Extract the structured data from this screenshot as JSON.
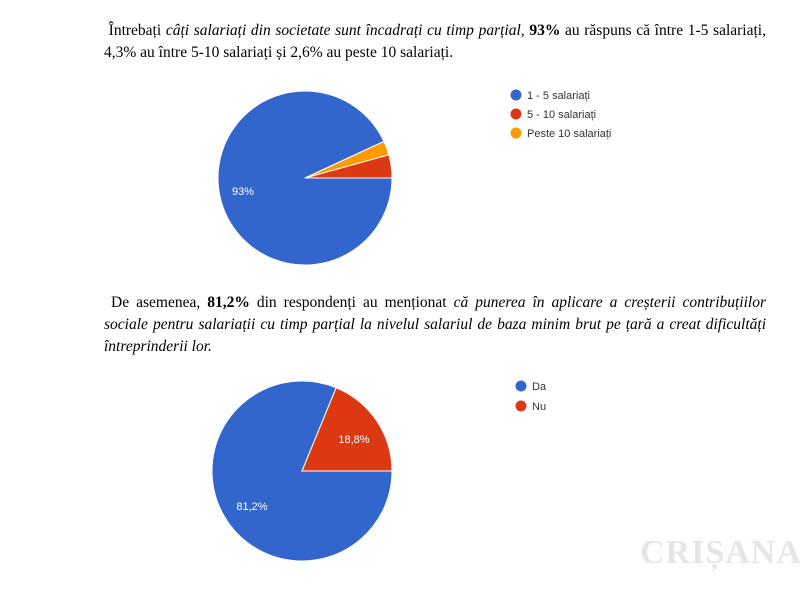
{
  "paragraph1": {
    "t1": "Întrebați ",
    "t2_italic": "câți salariați din societate sunt încadrați cu timp parțial",
    "t3": ", ",
    "t4_bold": "93%",
    "t5": " au răspuns că între 1-5 salariați, 4,3% au între 5-10 salariați și 2,6% au peste 10 salariați."
  },
  "paragraph2": {
    "t1": "De asemenea, ",
    "t2_bold": "81,2%",
    "t3": " din respondenți au menționat ",
    "t4_italic": "că punerea în aplicare a creșterii contribuțiilor sociale pentru salariații cu timp parțial la nivelul salariul de baza minim brut pe țară a creat dificultăți întreprinderii lor."
  },
  "chart_data": [
    {
      "type": "pie",
      "categories": [
        "1 - 5 salariați",
        "5 - 10 salariați",
        "Peste 10 salariați"
      ],
      "values": [
        93,
        4.3,
        2.6
      ],
      "colors": [
        "#3366cc",
        "#dc3912",
        "#ff9900"
      ],
      "slice_labels": [
        "93%",
        "",
        ""
      ],
      "legend": "right"
    },
    {
      "type": "pie",
      "categories": [
        "Da",
        "Nu"
      ],
      "values": [
        81.2,
        18.8
      ],
      "colors": [
        "#3366cc",
        "#dc3912"
      ],
      "slice_labels": [
        "81,2%",
        "18,8%"
      ],
      "legend": "right"
    }
  ],
  "watermark": "CRIȘANA"
}
